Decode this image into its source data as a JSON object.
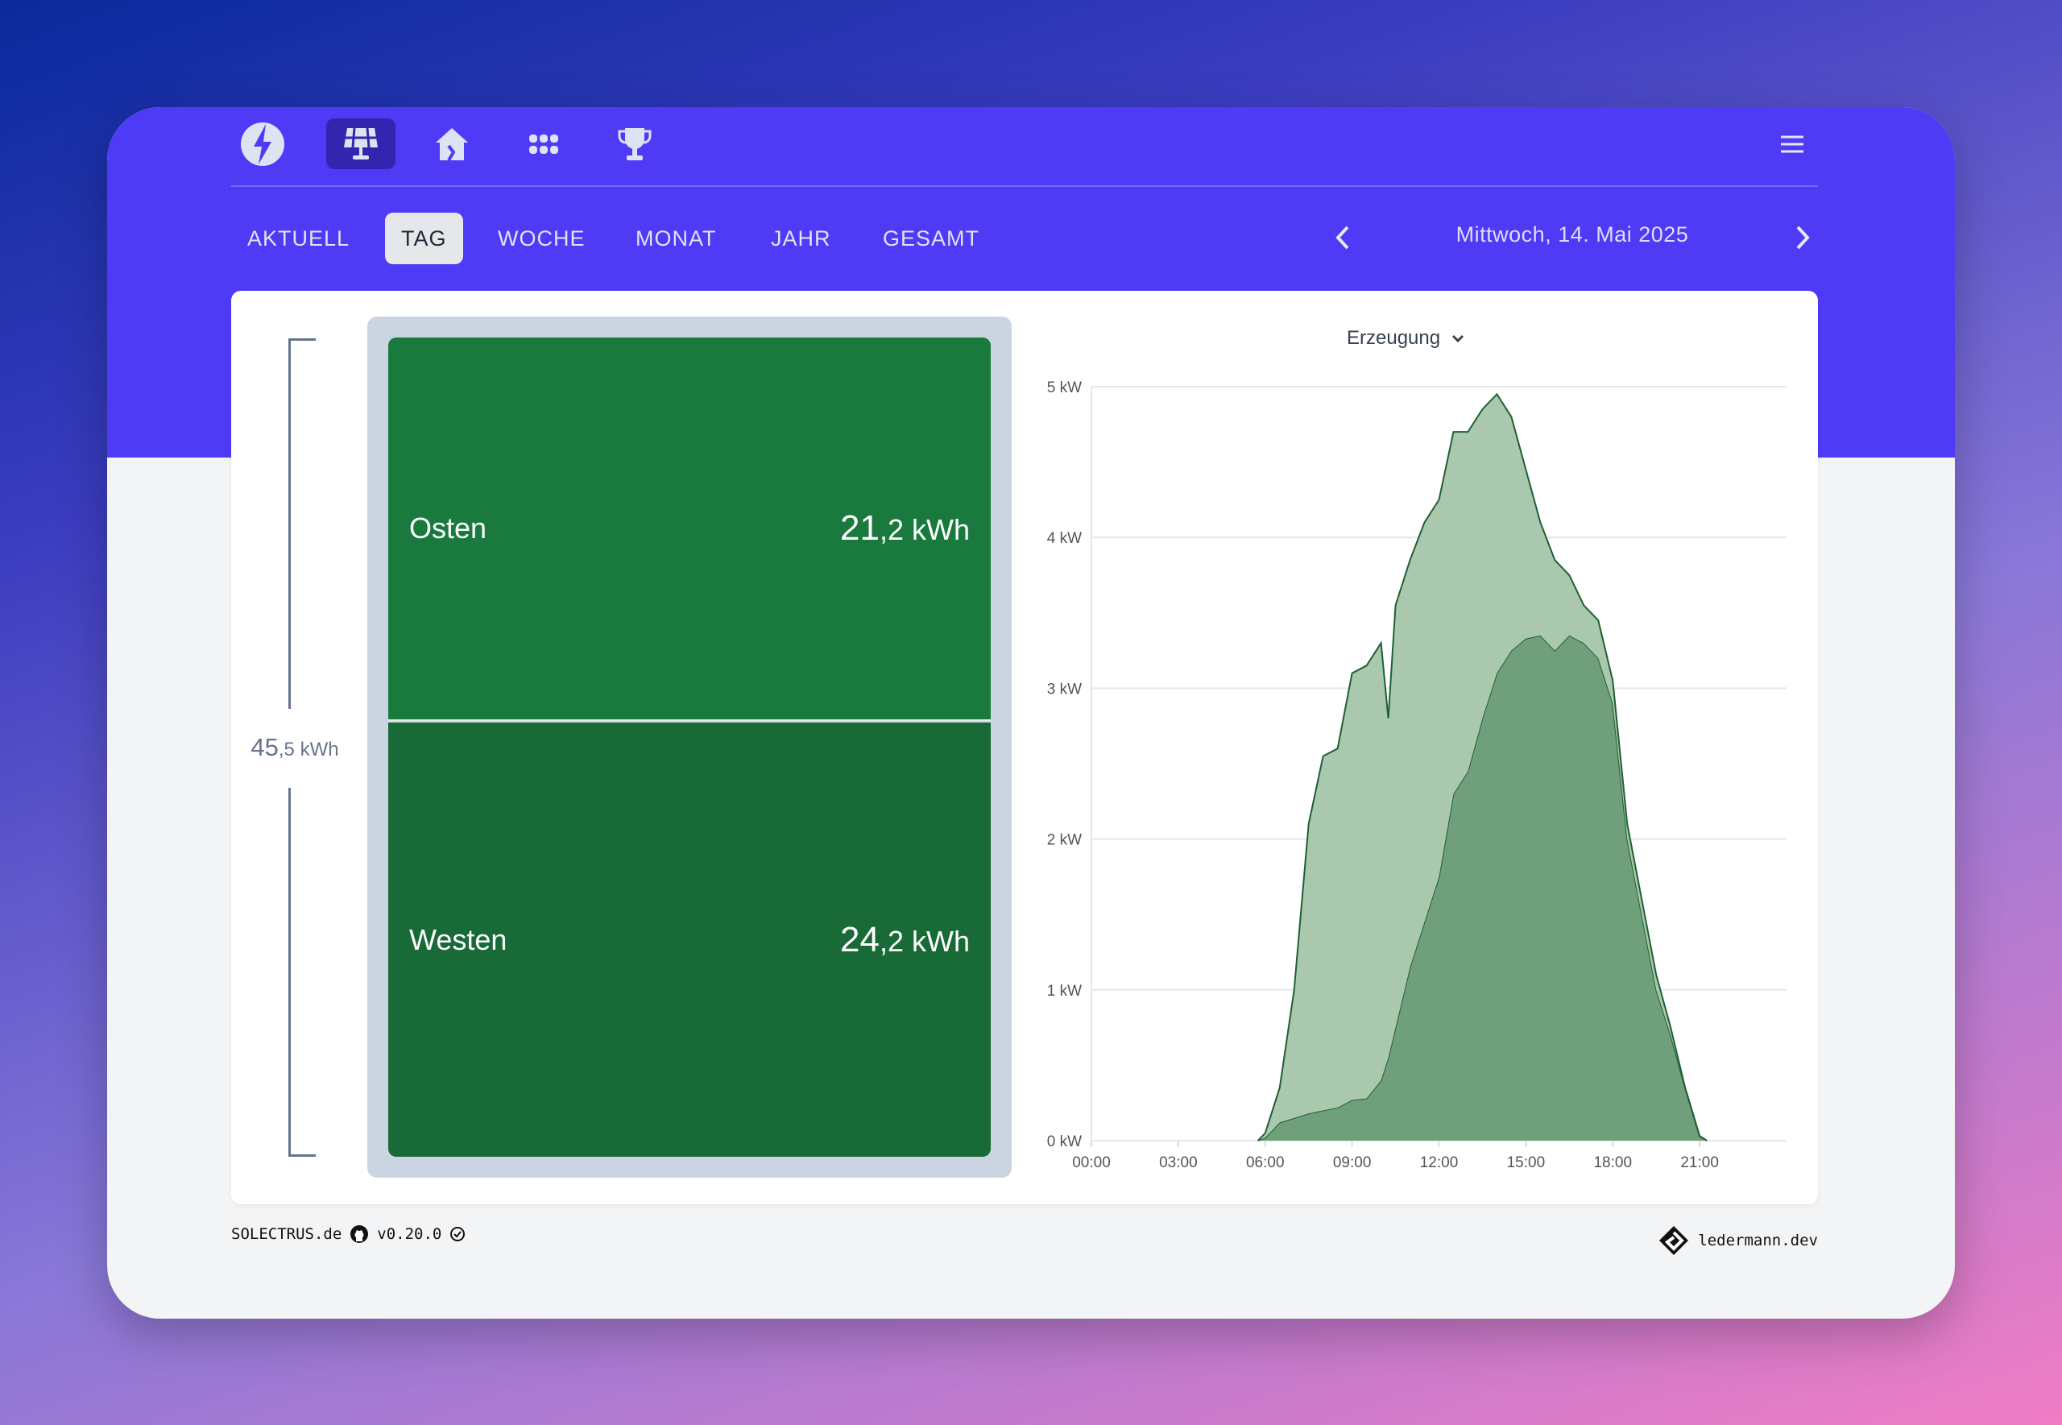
{
  "nav": {
    "icons": [
      "logo-bolt-icon",
      "solar-panel-icon",
      "house-icon",
      "grid-apps-icon",
      "trophy-icon"
    ],
    "active": "solar-panel-icon",
    "menu_icon": "hamburger-menu-icon"
  },
  "tabs": [
    {
      "label": "AKTUELL"
    },
    {
      "label": "TAG",
      "active": true
    },
    {
      "label": "WOCHE"
    },
    {
      "label": "MONAT"
    },
    {
      "label": "JAHR"
    },
    {
      "label": "GESAMT"
    }
  ],
  "date": "Mittwoch, 14. Mai 2025",
  "total": {
    "int": "45",
    "dec": ",5 kWh"
  },
  "segments": [
    {
      "name": "Osten",
      "int": "21",
      "dec": ",2 kWh",
      "color": "#1a7a3e"
    },
    {
      "name": "Westen",
      "int": "24",
      "dec": ",2 kWh",
      "color": "#186a37"
    }
  ],
  "chart_select": "Erzeugung",
  "chart_data": {
    "type": "area",
    "stacked": true,
    "yticks": [
      "0 kW",
      "1 kW",
      "2 kW",
      "3 kW",
      "4 kW",
      "5 kW"
    ],
    "ylim": [
      0,
      5
    ],
    "xticks": [
      "00:00",
      "03:00",
      "06:00",
      "09:00",
      "12:00",
      "15:00",
      "18:00",
      "21:00"
    ],
    "xlim": [
      "00:00",
      "24:00"
    ],
    "x": [
      "05:45",
      "06:00",
      "06:30",
      "07:00",
      "07:30",
      "08:00",
      "08:30",
      "09:00",
      "09:30",
      "10:00",
      "10:15",
      "10:30",
      "11:00",
      "11:30",
      "12:00",
      "12:30",
      "13:00",
      "13:30",
      "14:00",
      "14:30",
      "15:00",
      "15:30",
      "16:00",
      "16:30",
      "17:00",
      "17:30",
      "18:00",
      "18:30",
      "19:00",
      "19:30",
      "20:00",
      "20:30",
      "21:00",
      "21:15"
    ],
    "series": [
      {
        "name": "Westen",
        "color": "#6f9f7b",
        "values": [
          0,
          0.02,
          0.12,
          0.15,
          0.18,
          0.2,
          0.22,
          0.27,
          0.28,
          0.4,
          0.55,
          0.75,
          1.15,
          1.45,
          1.75,
          2.3,
          2.45,
          2.8,
          3.1,
          3.25,
          3.33,
          3.35,
          3.25,
          3.35,
          3.3,
          3.2,
          2.9,
          2.0,
          1.5,
          1.0,
          0.7,
          0.35,
          0.03,
          0
        ]
      },
      {
        "name": "Osten",
        "color": "#a9c8ae",
        "values": [
          0,
          0.03,
          0.23,
          0.85,
          1.92,
          2.35,
          2.38,
          2.83,
          2.87,
          2.9,
          2.25,
          2.8,
          2.7,
          2.65,
          2.5,
          2.4,
          2.25,
          2.05,
          1.85,
          1.55,
          1.12,
          0.75,
          0.6,
          0.4,
          0.25,
          0.25,
          0.15,
          0.1,
          0.1,
          0.1,
          0.05,
          0,
          0,
          0
        ]
      }
    ],
    "grid": true,
    "line_color": "#1f5f34"
  },
  "footer": {
    "brand": "SOLECTRUS.de",
    "version": "v0.20.0",
    "author": "ledermann.dev"
  }
}
